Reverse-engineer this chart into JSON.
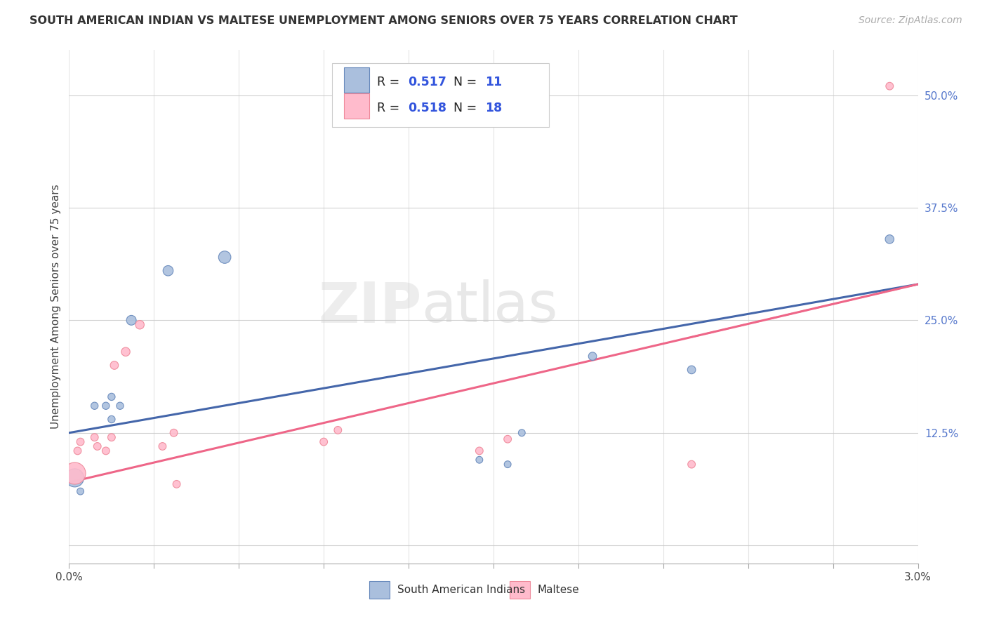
{
  "title": "SOUTH AMERICAN INDIAN VS MALTESE UNEMPLOYMENT AMONG SENIORS OVER 75 YEARS CORRELATION CHART",
  "source": "Source: ZipAtlas.com",
  "ylabel": "Unemployment Among Seniors over 75 years",
  "watermark_left": "ZIP",
  "watermark_right": "atlas",
  "color_blue": "#AABFDD",
  "color_blue_edge": "#6688BB",
  "color_pink": "#FFBBCC",
  "color_pink_edge": "#EE8899",
  "color_blue_line": "#4466AA",
  "color_pink_line": "#EE6688",
  "color_ytick": "#5577CC",
  "xlim": [
    0.0,
    0.03
  ],
  "ylim": [
    -0.02,
    0.55
  ],
  "yticks": [
    0.0,
    0.125,
    0.25,
    0.375,
    0.5
  ],
  "ytick_labels": [
    "",
    "12.5%",
    "25.0%",
    "37.5%",
    "50.0%"
  ],
  "xticks": [
    0.0,
    0.003,
    0.006,
    0.009,
    0.012,
    0.015,
    0.018,
    0.021,
    0.024,
    0.027,
    0.03
  ],
  "xtick_labels": [
    "0.0%",
    "",
    "",
    "",
    "",
    "",
    "",
    "",
    "",
    "",
    "3.0%"
  ],
  "blue_points": [
    [
      0.0002,
      0.075
    ],
    [
      0.0004,
      0.06
    ],
    [
      0.0009,
      0.155
    ],
    [
      0.0013,
      0.155
    ],
    [
      0.0015,
      0.165
    ],
    [
      0.0015,
      0.14
    ],
    [
      0.0018,
      0.155
    ],
    [
      0.0022,
      0.25
    ],
    [
      0.0035,
      0.305
    ],
    [
      0.0055,
      0.32
    ],
    [
      0.0145,
      0.095
    ],
    [
      0.0155,
      0.09
    ],
    [
      0.016,
      0.125
    ],
    [
      0.0185,
      0.21
    ],
    [
      0.022,
      0.195
    ],
    [
      0.029,
      0.34
    ]
  ],
  "blue_sizes": [
    350,
    50,
    55,
    55,
    55,
    55,
    55,
    100,
    110,
    160,
    50,
    50,
    50,
    70,
    70,
    80
  ],
  "pink_points": [
    [
      0.0002,
      0.08
    ],
    [
      0.0003,
      0.105
    ],
    [
      0.0004,
      0.115
    ],
    [
      0.0009,
      0.12
    ],
    [
      0.001,
      0.11
    ],
    [
      0.0013,
      0.105
    ],
    [
      0.0015,
      0.12
    ],
    [
      0.0016,
      0.2
    ],
    [
      0.002,
      0.215
    ],
    [
      0.0025,
      0.245
    ],
    [
      0.0033,
      0.11
    ],
    [
      0.0037,
      0.125
    ],
    [
      0.0038,
      0.068
    ],
    [
      0.009,
      0.115
    ],
    [
      0.0095,
      0.128
    ],
    [
      0.0145,
      0.105
    ],
    [
      0.0155,
      0.118
    ],
    [
      0.022,
      0.09
    ],
    [
      0.029,
      0.51
    ]
  ],
  "pink_sizes": [
    500,
    60,
    60,
    60,
    60,
    60,
    60,
    70,
    80,
    80,
    60,
    60,
    60,
    60,
    60,
    60,
    60,
    60,
    60
  ],
  "blue_trend": [
    0.0,
    0.125,
    0.03,
    0.29
  ],
  "pink_trend": [
    0.0,
    0.07,
    0.03,
    0.29
  ],
  "pink_trend_dashed_start": 0.022
}
